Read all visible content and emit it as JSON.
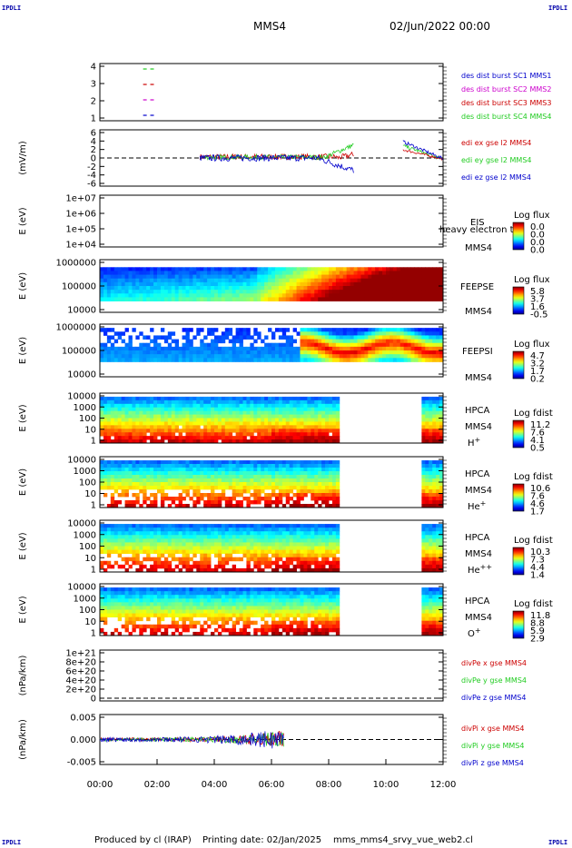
{
  "header": {
    "corner_label": "IPDLI",
    "spacecraft": "MMS4",
    "datetime": "02/Jun/2022 00:00"
  },
  "footer": {
    "produced_by": "Produced by cl (IRAP)",
    "printing_date": "Printing date: 02/Jan/2025",
    "file": "mms_mms4_srvy_vue_web2.cl"
  },
  "colors": {
    "sc1": "#0000cc",
    "sc2": "#cc00cc",
    "sc3": "#cc0000",
    "sc4": "#22cc22",
    "x": "#cc0000",
    "y": "#22cc22",
    "z": "#0000cc"
  },
  "chart_data": [
    {
      "type": "line",
      "id": "burst",
      "yticks": [
        "4",
        "3",
        "2",
        "1"
      ],
      "ylim": [
        0.5,
        4.5
      ],
      "legend": [
        "des dist burst SC1 MMS1",
        "des dist burst SC2 MMS2",
        "des dist burst SC3 MMS3",
        "des dist burst SC4 MMS4"
      ],
      "series": [
        {
          "name": "des dist burst SC4 MMS4",
          "y": 4,
          "x": [
            0.75,
            1.0
          ]
        },
        {
          "name": "des dist burst SC3 MMS3",
          "y": 3,
          "x": [
            0.75,
            1.0
          ]
        },
        {
          "name": "des dist burst SC2 MMS2",
          "y": 2,
          "x": [
            0.75,
            1.0
          ]
        },
        {
          "name": "des dist burst SC1 MMS1",
          "y": 1,
          "x": [
            0.75,
            1.0
          ]
        }
      ]
    },
    {
      "type": "line",
      "id": "edi",
      "ylabel": "(mV/m)",
      "yticks": [
        "6",
        "4",
        "2",
        "0",
        "-2",
        "-4",
        "-6"
      ],
      "ylim": [
        -6,
        6
      ],
      "legend": [
        "edi ex gse l2 MMS4",
        "edi ey gse l2 MMS4",
        "edi ez gse l2 MMS4"
      ]
    },
    {
      "type": "heatmap",
      "id": "eis",
      "ylabel": "E (eV)",
      "yticks": [
        "1e+07",
        "1e+06",
        "1e+05",
        "1e+04"
      ],
      "labels": [
        "EIS",
        "heavy electron to",
        "MMS4"
      ],
      "colorbar_title": "Log flux",
      "colorbar_ticks": [
        "0.0",
        "0.0",
        "0.0",
        "0.0"
      ]
    },
    {
      "type": "heatmap",
      "id": "feepse",
      "ylabel": "E (eV)",
      "yticks": [
        "1000000",
        "100000",
        "10000"
      ],
      "labels": [
        "FEEPSE",
        "MMS4"
      ],
      "colorbar_title": "Log flux",
      "colorbar_ticks": [
        "5.8",
        "3.7",
        "1.6",
        "-0.5"
      ]
    },
    {
      "type": "heatmap",
      "id": "feepsi",
      "ylabel": "E (eV)",
      "yticks": [
        "1000000",
        "100000",
        "10000"
      ],
      "labels": [
        "FEEPSI",
        "MMS4"
      ],
      "colorbar_title": "Log flux",
      "colorbar_ticks": [
        "4.7",
        "3.2",
        "1.7",
        "0.2"
      ]
    },
    {
      "type": "heatmap",
      "id": "hpca_h",
      "ylabel": "E (eV)",
      "yticks": [
        "10000",
        "1000",
        "100",
        "10",
        "1"
      ],
      "labels": [
        "HPCA",
        "MMS4",
        "H+"
      ],
      "colorbar_title": "Log fdist",
      "colorbar_ticks": [
        "11.2",
        "7.6",
        "4.1",
        "0.5"
      ]
    },
    {
      "type": "heatmap",
      "id": "hpca_he",
      "ylabel": "E (eV)",
      "yticks": [
        "10000",
        "1000",
        "100",
        "10",
        "1"
      ],
      "labels": [
        "HPCA",
        "MMS4",
        "He+"
      ],
      "colorbar_title": "Log fdist",
      "colorbar_ticks": [
        "10.6",
        "7.6",
        "4.6",
        "1.7"
      ]
    },
    {
      "type": "heatmap",
      "id": "hpca_hepp",
      "ylabel": "E (eV)",
      "yticks": [
        "10000",
        "1000",
        "100",
        "10",
        "1"
      ],
      "labels": [
        "HPCA",
        "MMS4",
        "He++"
      ],
      "colorbar_title": "Log fdist",
      "colorbar_ticks": [
        "10.3",
        "7.3",
        "4.4",
        "1.4"
      ]
    },
    {
      "type": "heatmap",
      "id": "hpca_o",
      "ylabel": "E (eV)",
      "yticks": [
        "10000",
        "1000",
        "100",
        "10",
        "1"
      ],
      "labels": [
        "HPCA",
        "MMS4",
        "O+"
      ],
      "colorbar_title": "Log fdist",
      "colorbar_ticks": [
        "11.8",
        "8.8",
        "5.9",
        "2.9"
      ]
    },
    {
      "type": "line",
      "id": "divpe",
      "ylabel": "(nPa/km)",
      "yticks": [
        "1e+21",
        "8e+20",
        "6e+20",
        "4e+20",
        "2e+20",
        "0"
      ],
      "ylim": [
        0,
        1e+21
      ],
      "legend": [
        "divPe x gse MMS4",
        "divPe y gse MMS4",
        "divPe z gse MMS4"
      ]
    },
    {
      "type": "line",
      "id": "divpi",
      "ylabel": "(nPa/km)",
      "yticks": [
        "0.005",
        "0.000",
        "-0.005"
      ],
      "ylim": [
        -0.0075,
        0.0075
      ],
      "legend": [
        "divPi x gse MMS4",
        "divPi y gse MMS4",
        "divPi z gse MMS4"
      ]
    }
  ],
  "xaxis": {
    "ticks": [
      "00:00",
      "02:00",
      "04:00",
      "06:00",
      "08:00",
      "10:00",
      "12:00"
    ],
    "range_hours": [
      0,
      12
    ]
  }
}
